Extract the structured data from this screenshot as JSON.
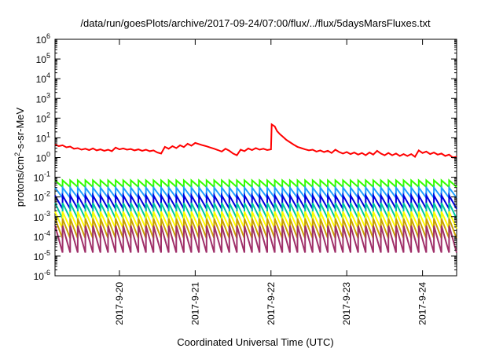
{
  "chart_data": {
    "type": "line",
    "title": "/data/run/goesPlots/archive/2017-09-24/07:00/flux/../flux/5daysMarsFluxes.txt",
    "xlabel": "Coordinated Universal Time (UTC)",
    "ylabel": {
      "prefix": "protons/cm",
      "sup": "2",
      "suffix": "-s-sr-MeV"
    },
    "yscale": "log",
    "ylim_exp": [
      -6,
      6
    ],
    "y_ticks": [
      {
        "base": "10",
        "exp": "-6"
      },
      {
        "base": "10",
        "exp": "-5"
      },
      {
        "base": "10",
        "exp": "-4"
      },
      {
        "base": "10",
        "exp": "-3"
      },
      {
        "base": "10",
        "exp": "-2"
      },
      {
        "base": "10",
        "exp": "-1"
      },
      {
        "base": "10",
        "exp": "0"
      },
      {
        "base": "10",
        "exp": "1"
      },
      {
        "base": "10",
        "exp": "2"
      },
      {
        "base": "10",
        "exp": "3"
      },
      {
        "base": "10",
        "exp": "4"
      },
      {
        "base": "10",
        "exp": "5"
      },
      {
        "base": "10",
        "exp": "6"
      }
    ],
    "xlim_days": [
      19.15,
      24.45
    ],
    "x_ticks": [
      {
        "label": "2017-9-20",
        "day": 20
      },
      {
        "label": "2017-9-21",
        "day": 21
      },
      {
        "label": "2017-9-22",
        "day": 22
      },
      {
        "label": "2017-9-23",
        "day": 23
      },
      {
        "label": "2017-9-24",
        "day": 24
      }
    ],
    "grid": false,
    "legend": "none",
    "series": [
      {
        "color": "#ff0000",
        "points": [
          [
            19.15,
            4.5
          ],
          [
            19.2,
            3.8
          ],
          [
            19.25,
            4.2
          ],
          [
            19.3,
            3.3
          ],
          [
            19.35,
            3.6
          ],
          [
            19.4,
            2.8
          ],
          [
            19.45,
            3.0
          ],
          [
            19.5,
            2.5
          ],
          [
            19.55,
            2.8
          ],
          [
            19.6,
            2.4
          ],
          [
            19.65,
            2.9
          ],
          [
            19.7,
            2.3
          ],
          [
            19.75,
            2.6
          ],
          [
            19.8,
            2.2
          ],
          [
            19.85,
            2.5
          ],
          [
            19.9,
            2.1
          ],
          [
            19.95,
            3.2
          ],
          [
            20.0,
            2.6
          ],
          [
            20.05,
            2.9
          ],
          [
            20.1,
            2.5
          ],
          [
            20.15,
            2.7
          ],
          [
            20.2,
            2.3
          ],
          [
            20.25,
            2.6
          ],
          [
            20.3,
            2.2
          ],
          [
            20.35,
            2.5
          ],
          [
            20.4,
            2.1
          ],
          [
            20.45,
            2.3
          ],
          [
            20.5,
            1.8
          ],
          [
            20.55,
            1.6
          ],
          [
            20.6,
            3.5
          ],
          [
            20.65,
            2.8
          ],
          [
            20.7,
            3.8
          ],
          [
            20.75,
            3.0
          ],
          [
            20.8,
            4.2
          ],
          [
            20.85,
            3.4
          ],
          [
            20.9,
            5.0
          ],
          [
            20.95,
            4.0
          ],
          [
            21.0,
            5.5
          ],
          [
            21.05,
            4.8
          ],
          [
            21.1,
            4.2
          ],
          [
            21.15,
            3.7
          ],
          [
            21.2,
            3.2
          ],
          [
            21.25,
            2.8
          ],
          [
            21.3,
            2.4
          ],
          [
            21.35,
            2.0
          ],
          [
            21.4,
            2.8
          ],
          [
            21.45,
            2.2
          ],
          [
            21.5,
            1.6
          ],
          [
            21.55,
            1.3
          ],
          [
            21.6,
            2.5
          ],
          [
            21.65,
            2.1
          ],
          [
            21.7,
            2.9
          ],
          [
            21.75,
            2.4
          ],
          [
            21.8,
            3.0
          ],
          [
            21.85,
            2.5
          ],
          [
            21.9,
            2.8
          ],
          [
            21.95,
            2.4
          ],
          [
            22.0,
            2.6
          ],
          [
            22.01,
            48
          ],
          [
            22.05,
            38
          ],
          [
            22.08,
            22
          ],
          [
            22.12,
            15
          ],
          [
            22.15,
            12
          ],
          [
            22.2,
            8
          ],
          [
            22.25,
            6
          ],
          [
            22.3,
            4.5
          ],
          [
            22.35,
            3.5
          ],
          [
            22.4,
            3.0
          ],
          [
            22.45,
            2.6
          ],
          [
            22.5,
            2.3
          ],
          [
            22.55,
            2.5
          ],
          [
            22.6,
            2.0
          ],
          [
            22.65,
            2.3
          ],
          [
            22.7,
            1.9
          ],
          [
            22.75,
            2.2
          ],
          [
            22.8,
            1.7
          ],
          [
            22.85,
            2.5
          ],
          [
            22.9,
            1.9
          ],
          [
            22.95,
            1.6
          ],
          [
            23.0,
            1.9
          ],
          [
            23.05,
            1.5
          ],
          [
            23.1,
            1.8
          ],
          [
            23.15,
            1.4
          ],
          [
            23.2,
            1.7
          ],
          [
            23.25,
            1.3
          ],
          [
            23.3,
            1.8
          ],
          [
            23.35,
            1.4
          ],
          [
            23.4,
            2.2
          ],
          [
            23.45,
            1.6
          ],
          [
            23.5,
            1.3
          ],
          [
            23.55,
            1.7
          ],
          [
            23.6,
            1.3
          ],
          [
            23.65,
            1.6
          ],
          [
            23.7,
            1.2
          ],
          [
            23.75,
            1.5
          ],
          [
            23.8,
            1.2
          ],
          [
            23.85,
            1.5
          ],
          [
            23.9,
            1.1
          ],
          [
            23.95,
            2.3
          ],
          [
            24.0,
            1.7
          ],
          [
            24.05,
            2.0
          ],
          [
            24.1,
            1.5
          ],
          [
            24.15,
            1.8
          ],
          [
            24.2,
            1.4
          ],
          [
            24.25,
            1.6
          ],
          [
            24.3,
            1.2
          ],
          [
            24.35,
            1.4
          ],
          [
            24.4,
            1.0
          ],
          [
            24.45,
            1.1
          ]
        ]
      },
      {
        "color": "#33ff00",
        "sawtooth": {
          "low": 0.032,
          "high": 0.07
        }
      },
      {
        "color": "#1f9fff",
        "sawtooth": {
          "low": 0.009,
          "high": 0.03
        }
      },
      {
        "color": "#0000dd",
        "sawtooth": {
          "low": 0.0025,
          "high": 0.012
        }
      },
      {
        "color": "#00c8a0",
        "sawtooth": {
          "low": 0.0008,
          "high": 0.005
        }
      },
      {
        "color": "#ffff00",
        "sawtooth": {
          "low": 0.00025,
          "high": 0.0018
        }
      },
      {
        "color": "#c8a000",
        "sawtooth": {
          "low": 8e-05,
          "high": 0.0008
        }
      },
      {
        "color": "#a0306a",
        "sawtooth": {
          "low": 1.5e-05,
          "high": 0.00035
        }
      }
    ],
    "sawtooth_period_days": 0.1
  }
}
